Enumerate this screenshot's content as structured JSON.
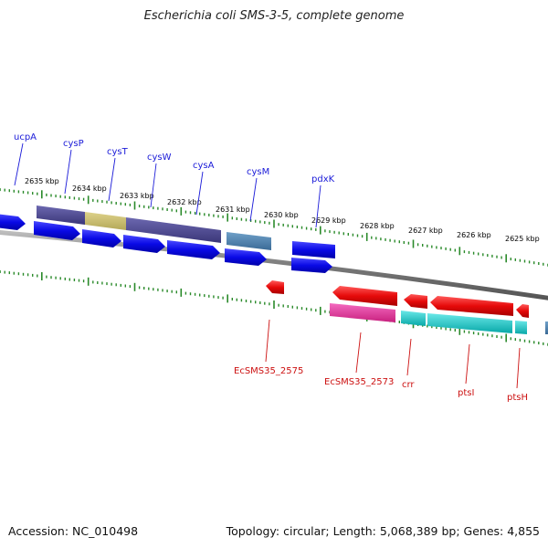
{
  "title": "Escherichia coli SMS-3-5, complete genome",
  "footer": {
    "accession": "Accession: NC_010498",
    "stats": "Topology: circular; Length: 5,068,389 bp; Genes: 4,855"
  },
  "ticks": [
    "2635 kbp",
    "2634 kbp",
    "2633 kbp",
    "2632 kbp",
    "2631 kbp",
    "2630 kbp",
    "2629 kbp",
    "2628 kbp",
    "2627 kbp",
    "2626 kbp",
    "2625 kbp"
  ],
  "genes_top": [
    "ucpA",
    "cysP",
    "cysT",
    "cysW",
    "cysA",
    "cysM",
    "pdxK"
  ],
  "genes_bottom": [
    "EcSMS35_2575",
    "EcSMS35_2573",
    "crr",
    "ptsI",
    "ptsH"
  ],
  "colors": {
    "cds": "#0a0ae6",
    "gene_red": "#e60a0a",
    "backbone": "#7a7a7a",
    "tick": "#2a8a2a",
    "label_top": "#1a1ad8",
    "label_bottom": "#cc1010",
    "band_purple": "#4a4690",
    "band_olive": "#c8bd6a",
    "band_steel": "#4a7fae",
    "band_magenta": "#e0329e",
    "band_cyan": "#12c8c8"
  }
}
